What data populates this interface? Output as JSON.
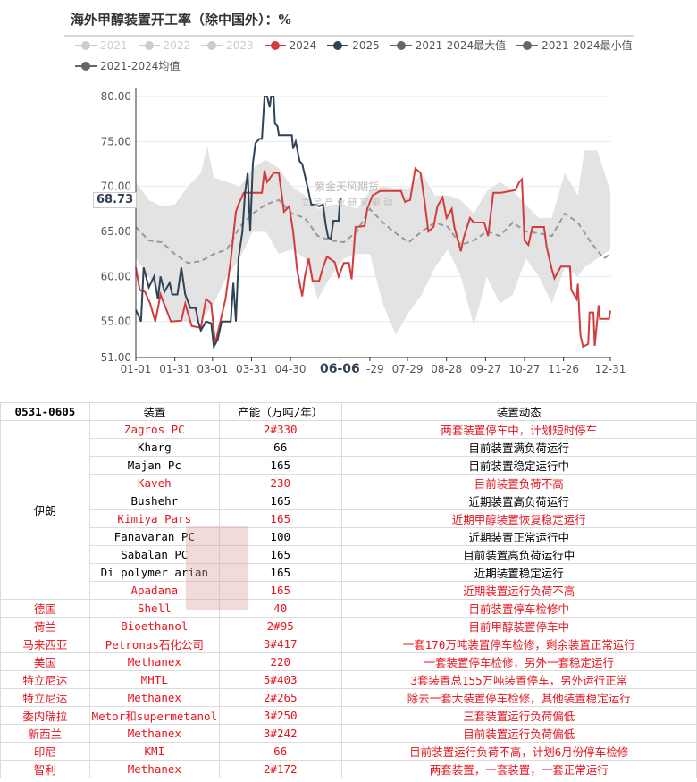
{
  "title": "海外甲醇装置开工率（除中国外）：%",
  "legend": [
    {
      "label": "2021",
      "color": "#cccccc",
      "active": false
    },
    {
      "label": "2022",
      "color": "#cccccc",
      "active": false
    },
    {
      "label": "2023",
      "color": "#cccccc",
      "active": false
    },
    {
      "label": "2024",
      "color": "#d23c3c",
      "active": true
    },
    {
      "label": "2025",
      "color": "#2f4354",
      "active": true
    },
    {
      "label": "2021-2024最大值",
      "color": "#666666",
      "active": true
    },
    {
      "label": "2021-2024最小值",
      "color": "#666666",
      "active": true
    },
    {
      "label": "2021-2024均值",
      "color": "#666666",
      "active": true
    }
  ],
  "tooltip_value": "68.73",
  "watermark": "紫金天风期货",
  "watermark_slogan": "立 足 产 业   研 究 驱 动",
  "chart_data": {
    "type": "line",
    "title": "海外甲醇装置开工率（除中国外）：%",
    "ylim": [
      51,
      80
    ],
    "yticks": [
      "51.00",
      "55.00",
      "60.00",
      "65.00",
      "70.00",
      "75.00",
      "80.00"
    ],
    "xticks": [
      "01-01",
      "01-31",
      "03-01",
      "03-31",
      "04-30",
      "06-06",
      "-29",
      "07-29",
      "08-28",
      "09-27",
      "10-27",
      "11-26",
      "12-31"
    ],
    "x_unit": "day of year",
    "grid": true,
    "legend_position": "top",
    "highlighted_x_label": "06-06",
    "series": [
      {
        "name": "2024",
        "color": "#d23c3c",
        "x": [
          0,
          3,
          7,
          11,
          15,
          19,
          27,
          35,
          38,
          43,
          50,
          54,
          58,
          61,
          65,
          69,
          73,
          77,
          79,
          83,
          97,
          99,
          101,
          106,
          110,
          114,
          118,
          121,
          124,
          128,
          130,
          133,
          136,
          141,
          144,
          147,
          153,
          156,
          160,
          164,
          166,
          169,
          176,
          178,
          182,
          188,
          204,
          207,
          211,
          215,
          219,
          222,
          225,
          229,
          232,
          236,
          239,
          243,
          245,
          250,
          252,
          257,
          260,
          268,
          271,
          275,
          281,
          292,
          295,
          297,
          299,
          302,
          305,
          314,
          316,
          320,
          322,
          327,
          334,
          335,
          339,
          340,
          342,
          344,
          348,
          349,
          352,
          353,
          356,
          357,
          364,
          365
        ],
        "values": [
          61,
          58.5,
          58.3,
          57,
          55,
          58,
          55,
          55.1,
          57,
          54.5,
          54.3,
          57.5,
          57,
          52.5,
          55,
          57.5,
          61.8,
          67.2,
          68,
          69.3,
          69.3,
          71.8,
          70.5,
          71.5,
          71.5,
          67.2,
          67.8,
          65,
          60.8,
          57.8,
          60,
          62,
          59.5,
          59.5,
          61,
          62.2,
          61.6,
          60,
          61.5,
          61.5,
          59.7,
          65.5,
          65.6,
          67.5,
          69,
          69.5,
          69.5,
          68.3,
          68.5,
          72,
          71.5,
          68.5,
          65,
          65.5,
          67.8,
          68.8,
          66.5,
          67.5,
          65.5,
          62.8,
          64.2,
          66.5,
          66,
          66,
          64.5,
          69.3,
          69.3,
          69.6,
          70.5,
          70.8,
          64,
          63.5,
          65.5,
          65.5,
          63.3,
          60.8,
          59.8,
          61.1,
          61.1,
          58.5,
          57.5,
          59.2,
          53.5,
          52.2,
          52.5,
          56,
          56,
          52.3,
          56.8,
          55.3,
          55.3,
          56.2
        ]
      },
      {
        "name": "2025",
        "color": "#2f4354",
        "x": [
          0,
          4,
          6,
          10,
          14,
          17,
          19,
          22,
          26,
          28,
          32,
          35,
          38,
          42,
          46,
          48,
          50,
          54,
          58,
          60,
          63,
          66,
          73,
          75,
          77,
          79,
          82,
          84,
          86,
          88,
          90,
          92,
          95,
          97,
          99,
          101,
          103,
          104,
          106,
          107,
          109,
          110,
          120,
          121,
          123,
          126,
          128,
          132,
          135,
          138,
          141,
          144,
          146,
          148,
          150,
          152,
          156,
          157,
          158
        ],
        "values": [
          56.3,
          55,
          61,
          58.8,
          60,
          57.5,
          60,
          58.3,
          59.3,
          58,
          58,
          61,
          58,
          56.5,
          56.5,
          55,
          54,
          55,
          54.8,
          52.2,
          53,
          55,
          55,
          59.3,
          55,
          62,
          65,
          69.3,
          71.5,
          65,
          72.5,
          74.8,
          75.3,
          75.3,
          80,
          80,
          78.8,
          80,
          80,
          77,
          76.7,
          75.7,
          75.7,
          74.2,
          75,
          72.8,
          72.5,
          70,
          68,
          68,
          67.8,
          68,
          65.8,
          64.3,
          64.2,
          66.2,
          66.2,
          68.5,
          68.73
        ]
      },
      {
        "name": "2021-2024最大值",
        "color": "#e3e3e3",
        "x": [
          0,
          10,
          20,
          30,
          40,
          50,
          55,
          60,
          70,
          80,
          90,
          100,
          110,
          120,
          130,
          140,
          150,
          160,
          170,
          180,
          190,
          200,
          210,
          220,
          230,
          240,
          250,
          260,
          270,
          280,
          290,
          300,
          310,
          320,
          330,
          340,
          345,
          355,
          365
        ],
        "values": [
          70.5,
          68.5,
          67.8,
          68,
          70,
          71.5,
          74.5,
          71,
          70.5,
          70,
          72,
          73,
          72,
          70,
          69,
          67.5,
          68,
          68,
          67.5,
          69.5,
          70,
          69.8,
          69.8,
          71.5,
          69,
          69,
          68.5,
          67,
          69.5,
          70.5,
          69.5,
          68,
          66.5,
          66.5,
          71.5,
          69,
          74,
          74,
          69.5
        ]
      },
      {
        "name": "2021-2024最小值",
        "color": "#e3e3e3",
        "x": [
          0,
          10,
          20,
          30,
          40,
          50,
          55,
          60,
          70,
          80,
          90,
          100,
          110,
          120,
          130,
          140,
          150,
          160,
          170,
          180,
          190,
          200,
          210,
          220,
          230,
          240,
          250,
          260,
          270,
          280,
          290,
          300,
          310,
          320,
          330,
          340,
          345,
          355,
          365
        ],
        "values": [
          62,
          60,
          57,
          55,
          55,
          55,
          56,
          57,
          60,
          62,
          65,
          65,
          62.5,
          63,
          62,
          57.5,
          60,
          62,
          62.5,
          62.5,
          57,
          53.5,
          56,
          58,
          61,
          63,
          60,
          54.5,
          60,
          57,
          58,
          62,
          60,
          57,
          61,
          60,
          61,
          62,
          63
        ]
      },
      {
        "name": "2021-2024均值",
        "color": "#999999",
        "x": [
          0,
          10,
          20,
          30,
          40,
          50,
          60,
          70,
          80,
          90,
          100,
          110,
          120,
          130,
          140,
          150,
          160,
          170,
          180,
          190,
          200,
          210,
          220,
          230,
          240,
          250,
          260,
          270,
          280,
          290,
          300,
          310,
          320,
          330,
          340,
          350,
          360,
          365
        ],
        "values": [
          65.5,
          64,
          63.8,
          62.5,
          61.5,
          61.7,
          62.5,
          63,
          65.5,
          67,
          68,
          68.5,
          67,
          66.5,
          64.5,
          64,
          63.8,
          65,
          67.5,
          66,
          64.8,
          63.8,
          65,
          66,
          65.5,
          63.5,
          64,
          65,
          64.5,
          66,
          65,
          64.8,
          64.5,
          67,
          66,
          63.8,
          62,
          62.5
        ]
      }
    ]
  },
  "table": {
    "headers": [
      "0531-0605",
      "装置",
      "产能（万吨/年）",
      "装置动态"
    ],
    "iran_label": "伊朗",
    "iran_rows": [
      {
        "plant": "Zagros PC",
        "capacity": "2#330",
        "status": "两套装置停车中，计划短时停车",
        "red": true
      },
      {
        "plant": "Kharg",
        "capacity": "66",
        "status": "目前装置满负荷运行",
        "red": false
      },
      {
        "plant": "Majan Pc",
        "capacity": "165",
        "status": "目前装置稳定运行中",
        "red": false
      },
      {
        "plant": "Kaveh",
        "capacity": "230",
        "status": "目前装置负荷不高",
        "red": true
      },
      {
        "plant": "Bushehr",
        "capacity": "165",
        "status": "近期装置高负荷运行",
        "red": false
      },
      {
        "plant": "Kimiya Pars",
        "capacity": "165",
        "status": "近期甲醇装置恢复稳定运行",
        "red": true
      },
      {
        "plant": "Fanavaran PC",
        "capacity": "100",
        "status": "近期装置正常运行中",
        "red": false
      },
      {
        "plant": "Sabalan PC",
        "capacity": "165",
        "status": "目前装置高负荷运行中",
        "red": false
      },
      {
        "plant": "Di polymer arian",
        "capacity": "165",
        "status": "近期装置稳定运行",
        "red": false
      },
      {
        "plant": "Apadana",
        "capacity": "165",
        "status": "近期装置运行负荷不高",
        "red": true
      }
    ],
    "other_rows": [
      {
        "country": "德国",
        "plant": "Shell",
        "capacity": "40",
        "status": "目前装置停车检修中"
      },
      {
        "country": "荷兰",
        "plant": "Bioethanol",
        "capacity": "2#95",
        "status": "目前甲醇装置停车中"
      },
      {
        "country": "马来西亚",
        "plant": "Petronas石化公司",
        "capacity": "3#417",
        "status": "一套170万吨装置停车检修，剩余装置正常运行"
      },
      {
        "country": "美国",
        "plant": "Methanex",
        "capacity": "220",
        "status": "一套装置停车检修，另外一套稳定运行"
      },
      {
        "country": "特立尼达",
        "plant": "MHTL",
        "capacity": "5#403",
        "status": "3套装置总155万吨装置停车，另外运行正常"
      },
      {
        "country": "特立尼达",
        "plant": "Methanex",
        "capacity": "2#265",
        "status": "除去一套大装置停车检修，其他装置稳定运行"
      },
      {
        "country": "委内瑞拉",
        "plant": "Metor和supermetanol",
        "capacity": "3#250",
        "status": "三套装置运行负荷偏低"
      },
      {
        "country": "新西兰",
        "plant": "Methanex",
        "capacity": "3#242",
        "status": "目前装置运行负荷偏低"
      },
      {
        "country": "印尼",
        "plant": "KMI",
        "capacity": "66",
        "status": "目前装置运行负荷不高，计划6月份停车检修"
      },
      {
        "country": "智利",
        "plant": "Methanex",
        "capacity": "2#172",
        "status": "两套装置，一套装置，一套正常运行"
      }
    ]
  }
}
